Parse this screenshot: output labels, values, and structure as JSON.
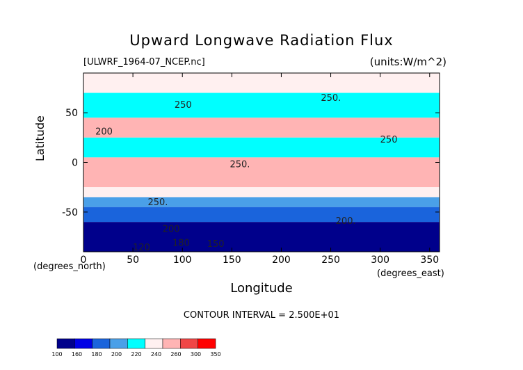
{
  "chart_data": {
    "type": "heatmap",
    "title": "Upward Longwave Radiation Flux",
    "subtitle_left": "[ULWRF_1964-07_NCEP.nc]",
    "subtitle_right": "(units:W/m^2)",
    "xlabel": "Longitude",
    "ylabel": "Latitude",
    "x_units_label": "(degrees_east)",
    "y_units_label": "(degrees_north)",
    "xlim": [
      0,
      360
    ],
    "ylim": [
      -90,
      90
    ],
    "x_ticks": [
      0,
      50,
      100,
      150,
      200,
      250,
      300,
      350
    ],
    "y_ticks": [
      50,
      0,
      -50
    ],
    "contour_interval_text": "CONTOUR INTERVAL = 2.500E+01",
    "contour_labels": [
      {
        "text": "250",
        "lon": 92,
        "lat": 55
      },
      {
        "text": "200",
        "lon": 12,
        "lat": 28
      },
      {
        "text": "250.",
        "lon": 240,
        "lat": 62
      },
      {
        "text": "250",
        "lon": 300,
        "lat": 20
      },
      {
        "text": "250.",
        "lon": 148,
        "lat": -5
      },
      {
        "text": "250.",
        "lon": 65,
        "lat": -43
      },
      {
        "text": "200.",
        "lon": 255,
        "lat": -62
      },
      {
        "text": "200",
        "lon": 80,
        "lat": -70
      },
      {
        "text": "180",
        "lon": 90,
        "lat": -84
      },
      {
        "text": "150",
        "lon": 125,
        "lat": -85
      },
      {
        "text": "120",
        "lon": 50,
        "lat": -95
      }
    ],
    "colorbar": {
      "ticks": [
        "100",
        "160",
        "180",
        "200",
        "220",
        "240",
        "260",
        "300",
        "350"
      ],
      "colors": [
        "#00008b",
        "#0000e6",
        "#1a64dc",
        "#4aa0e8",
        "#00ffff",
        "#fff0f0",
        "#ffb4b4",
        "#f04646",
        "#ff0000"
      ]
    },
    "bands": [
      {
        "lat_from": 90,
        "lat_to": 70,
        "value": 240
      },
      {
        "lat_from": 70,
        "lat_to": 45,
        "value": 225
      },
      {
        "lat_from": 45,
        "lat_to": 25,
        "value": 265
      },
      {
        "lat_from": 25,
        "lat_to": 5,
        "value": 220
      },
      {
        "lat_from": 5,
        "lat_to": -25,
        "value": 275
      },
      {
        "lat_from": -25,
        "lat_to": -35,
        "value": 240
      },
      {
        "lat_from": -35,
        "lat_to": -45,
        "value": 215
      },
      {
        "lat_from": -45,
        "lat_to": -60,
        "value": 195
      },
      {
        "lat_from": -60,
        "lat_to": -90,
        "value": 150
      }
    ]
  }
}
